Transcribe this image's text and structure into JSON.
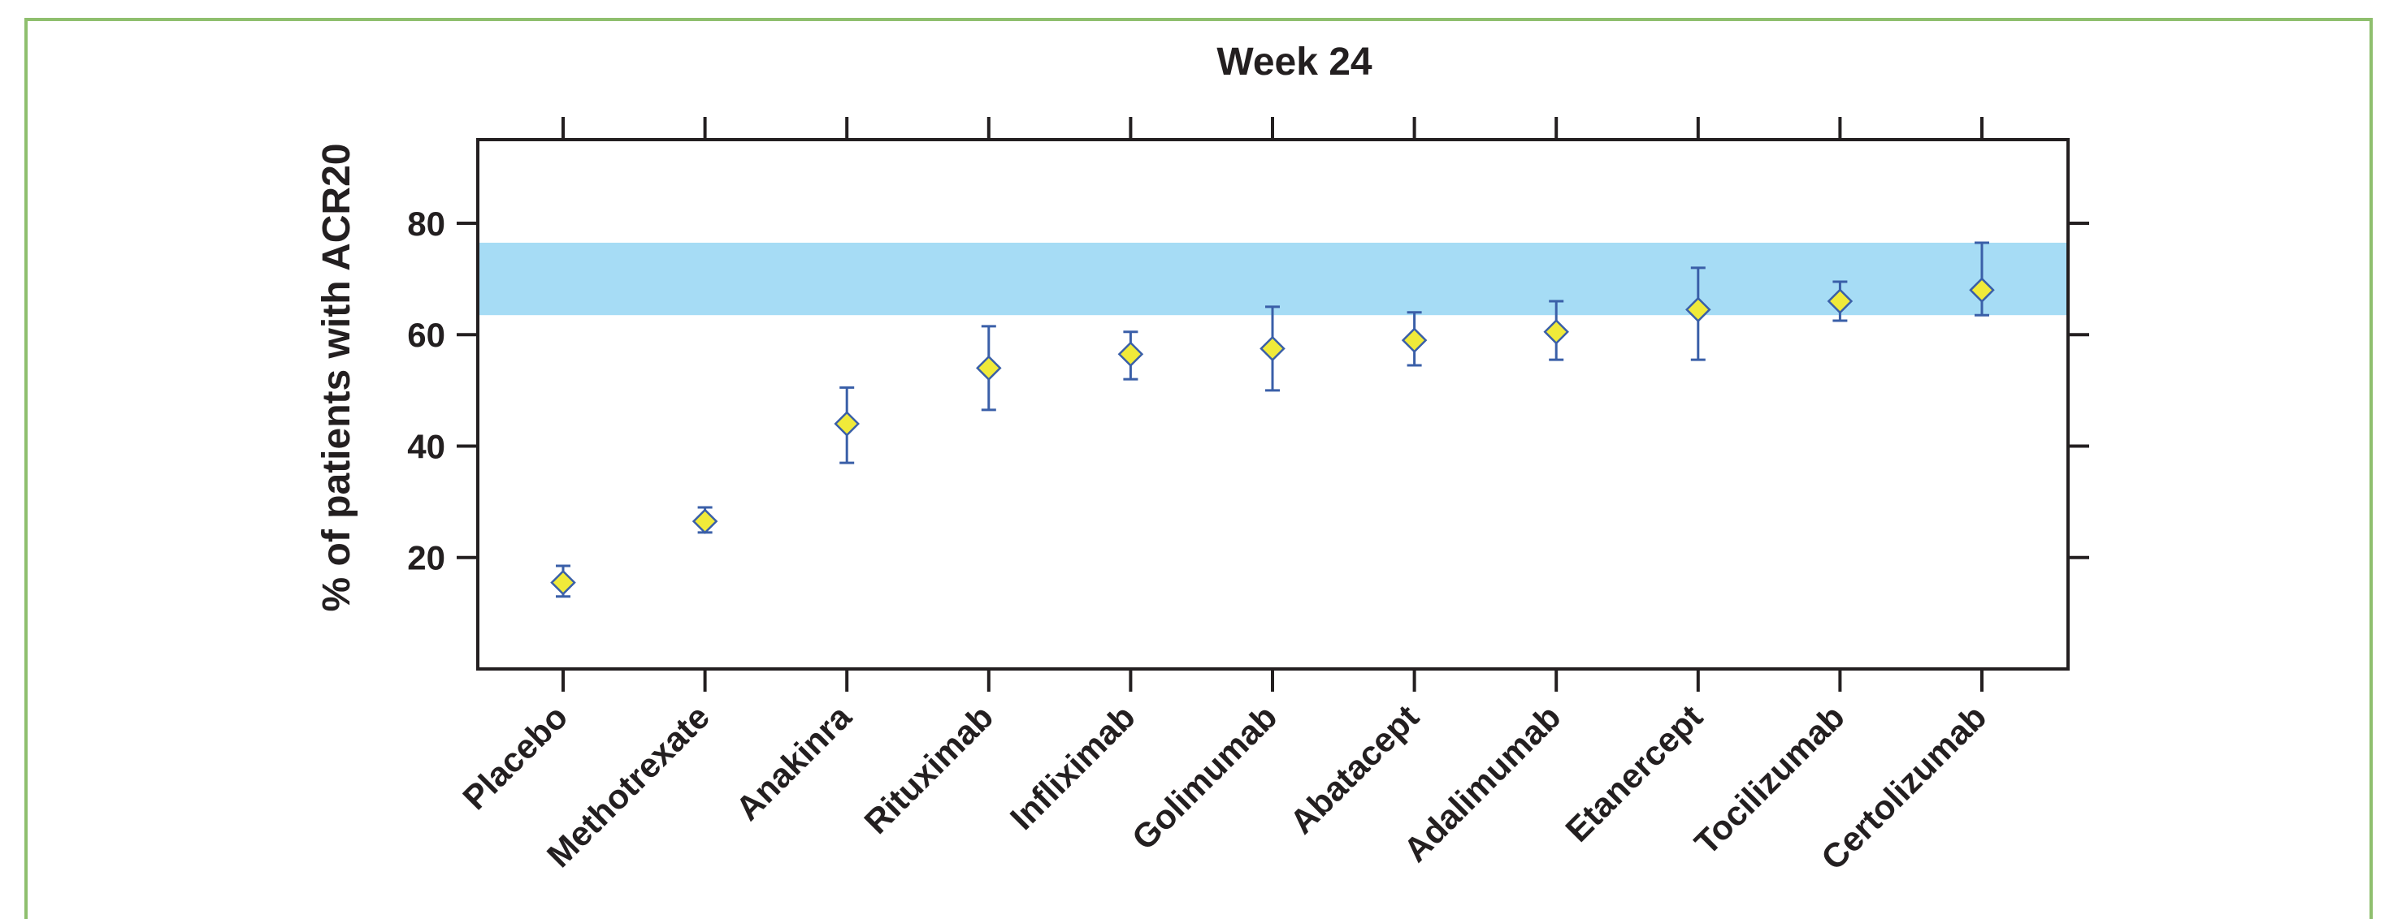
{
  "chart_data": {
    "type": "scatter",
    "title": "Week 24",
    "xlabel": "",
    "ylabel": "% of patients with ACR20",
    "ylim": [
      0,
      95
    ],
    "yticks": [
      20,
      40,
      60,
      80
    ],
    "grid": false,
    "legend": "none",
    "categories": [
      "Placebo",
      "Methotrexate",
      "Anakinra",
      "Rituximab",
      "Infliximab",
      "Golimumab",
      "Abatacept",
      "Adalimumab",
      "Etanercept",
      "Tocilizumab",
      "Certolizumab"
    ],
    "series": [
      {
        "values": [
          15.5,
          26.5,
          44,
          54,
          56.5,
          57.5,
          59,
          60.5,
          64.5,
          66,
          68
        ],
        "lower": [
          13,
          24.5,
          37,
          46.5,
          52,
          50,
          54.5,
          55.5,
          55.5,
          62.5,
          63.5
        ],
        "upper": [
          18.5,
          29,
          50.5,
          61.5,
          60.5,
          65,
          64,
          66,
          72,
          69.5,
          76.5
        ]
      }
    ],
    "band": {
      "from": 63.5,
      "to": 76.5
    },
    "colors": {
      "band": "#a6dcf5",
      "marker_fill": "#f0ea3a",
      "marker_stroke": "#3a5fa8",
      "error_bar": "#3a5fa8",
      "axis": "#231f20",
      "frame": "#8fbf6e"
    }
  }
}
